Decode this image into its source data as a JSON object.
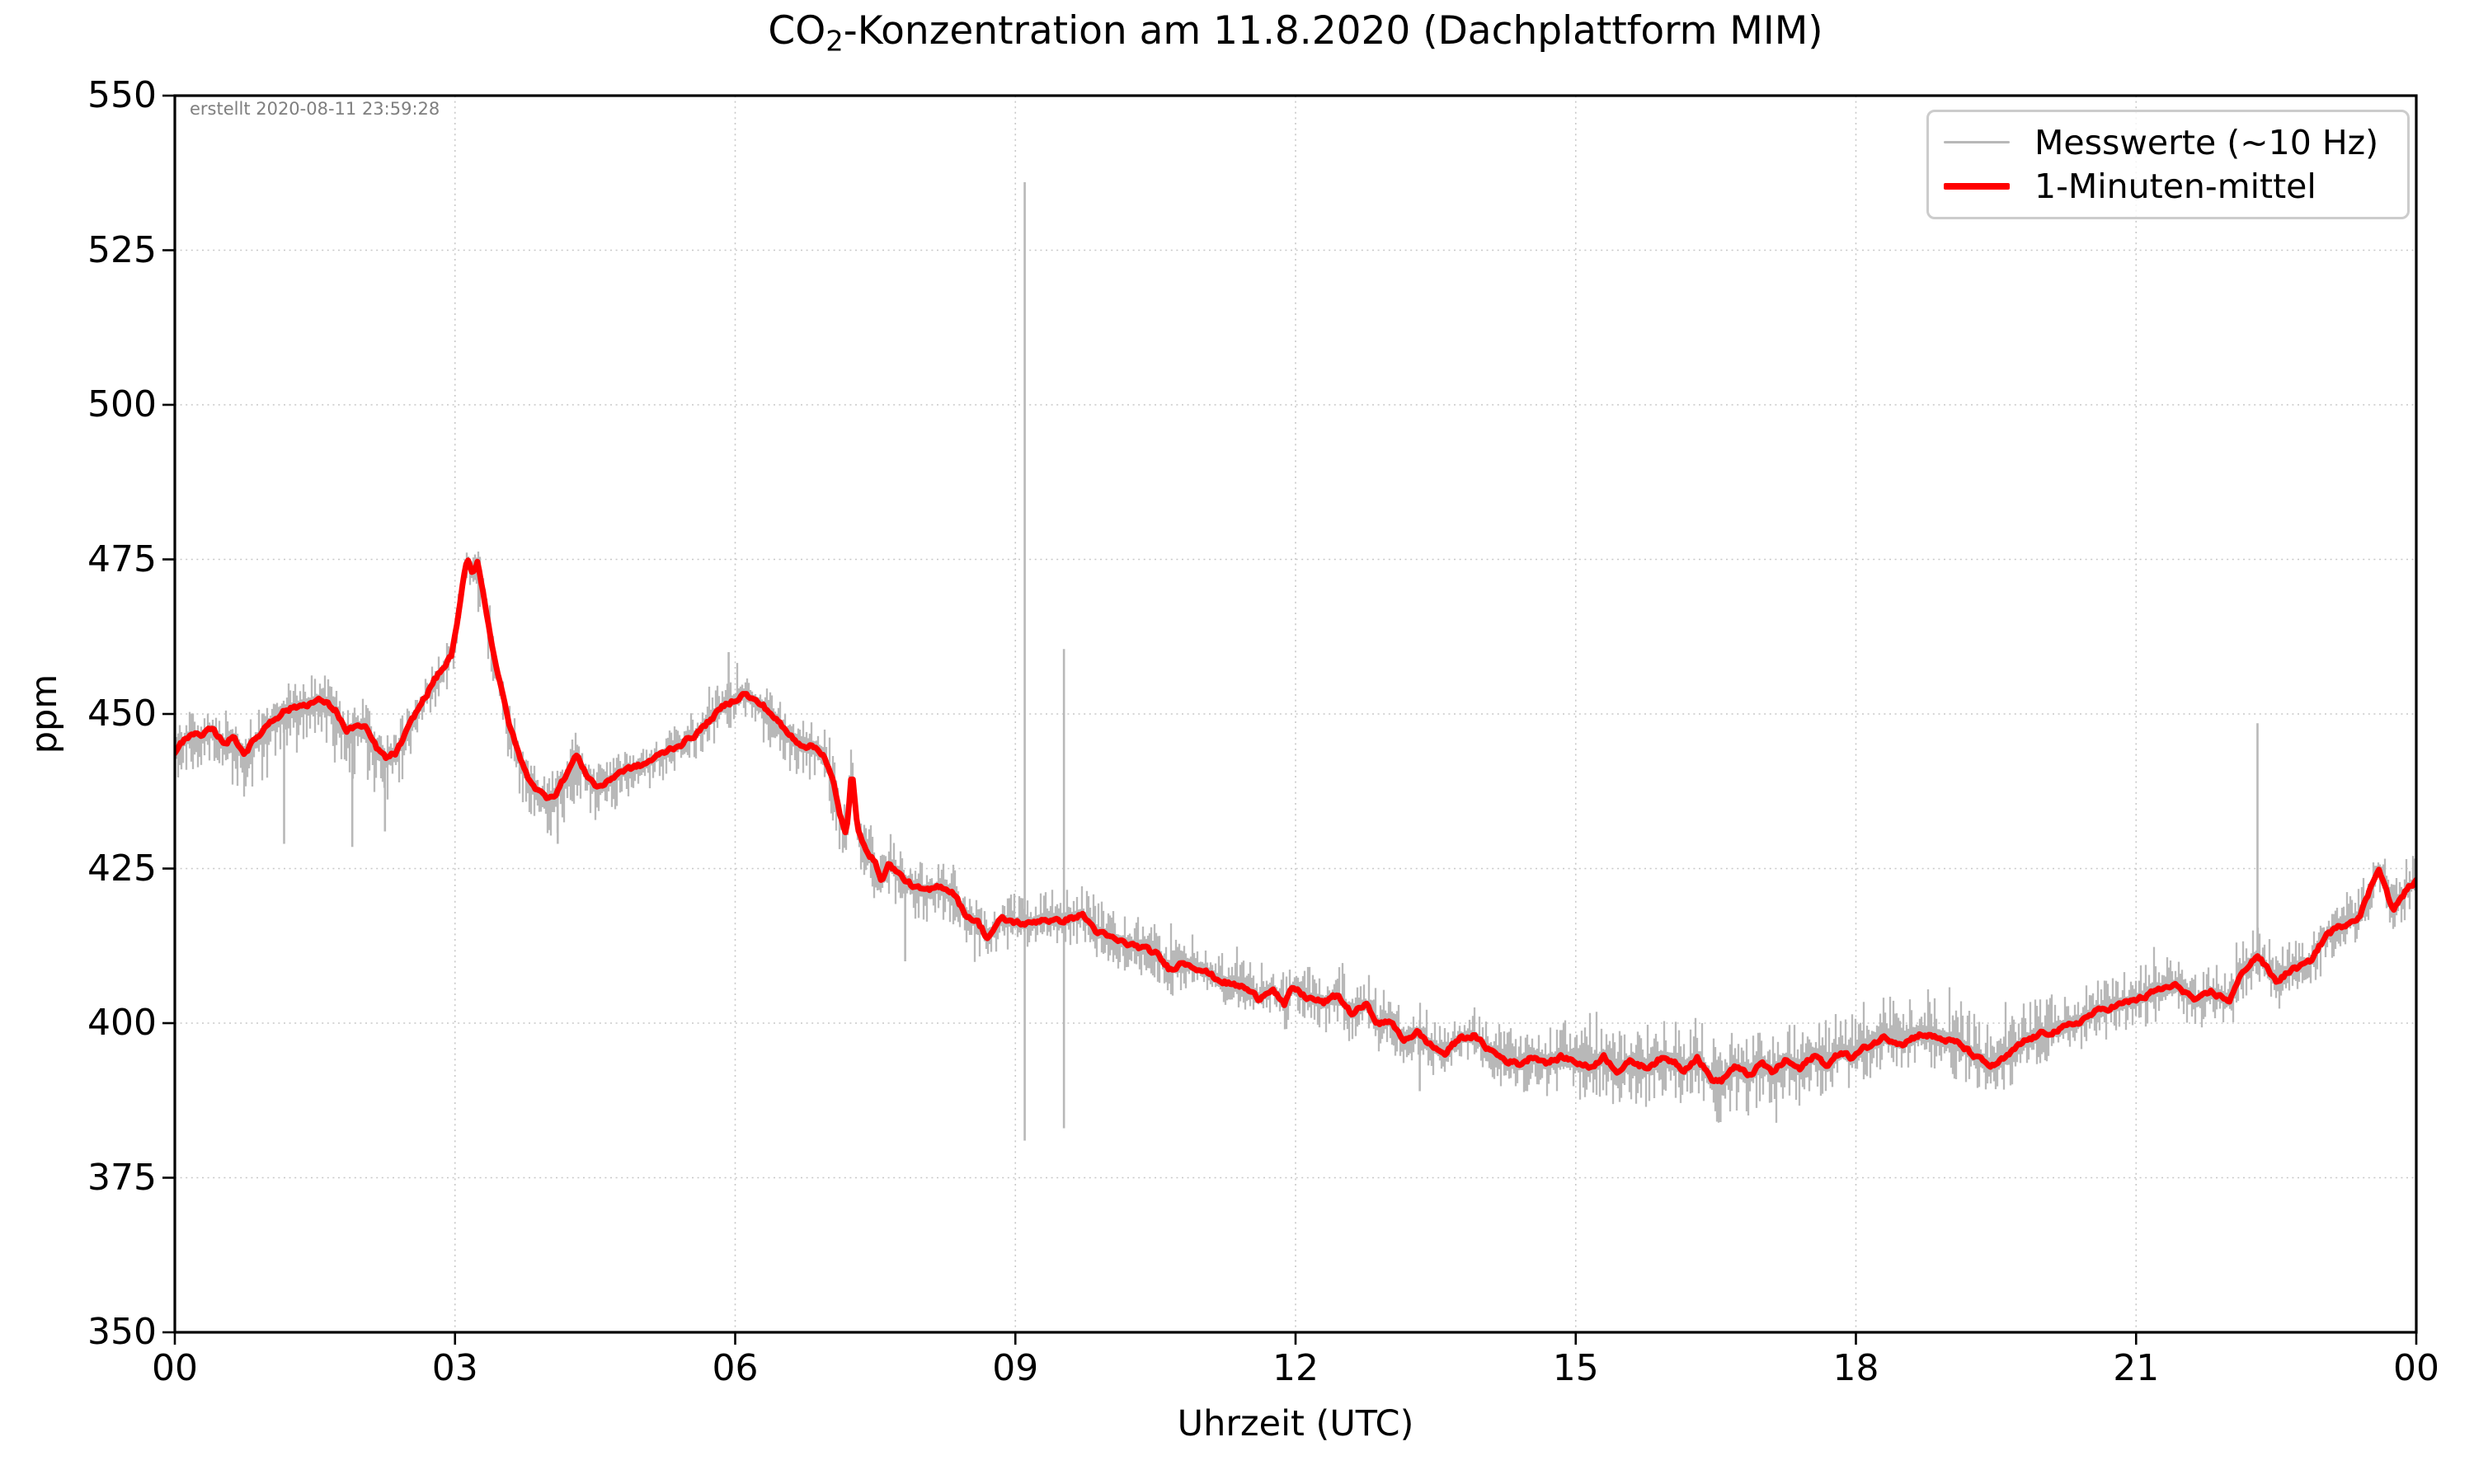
{
  "chart_data": {
    "type": "line",
    "title": {
      "prefix": "CO",
      "sub": "2",
      "rest": "-Konzentration am 11.8.2020 (Dachplattform MIM)"
    },
    "created_note": "erstellt 2020-08-11 23:59:28",
    "xlabel": "Uhrzeit (UTC)",
    "ylabel": "ppm",
    "xlim": [
      0,
      24
    ],
    "ylim": [
      350,
      550
    ],
    "grid": "dotted",
    "grid_color": "#c8c8c8",
    "axis_color": "#000000",
    "background": "#ffffff",
    "x_ticks": [
      {
        "t": 0,
        "label": "00"
      },
      {
        "t": 3,
        "label": "03"
      },
      {
        "t": 6,
        "label": "06"
      },
      {
        "t": 9,
        "label": "09"
      },
      {
        "t": 12,
        "label": "12"
      },
      {
        "t": 15,
        "label": "15"
      },
      {
        "t": 18,
        "label": "18"
      },
      {
        "t": 21,
        "label": "21"
      },
      {
        "t": 24,
        "label": "00"
      }
    ],
    "y_ticks": [
      350,
      375,
      400,
      425,
      450,
      475,
      500,
      525,
      550
    ],
    "legend": {
      "position": "top-right",
      "items": [
        {
          "label": "Messwerte (~10 Hz)",
          "color": "#b8b8b8",
          "line_width": 3
        },
        {
          "label": "1-Minuten-mittel",
          "color": "#ff0000",
          "line_width": 8
        }
      ]
    },
    "series": [
      {
        "name": "Messwerte (~10 Hz)",
        "color": "#b8b8b8",
        "render": "noise_band",
        "noise_keyframes": [
          [
            0.0,
            3.5,
            4.5
          ],
          [
            0.6,
            4,
            8
          ],
          [
            1.3,
            4.5,
            9
          ],
          [
            2.0,
            4.5,
            9
          ],
          [
            2.5,
            4,
            6
          ],
          [
            3.0,
            3.5,
            4.5
          ],
          [
            3.3,
            4.5,
            6
          ],
          [
            3.8,
            4,
            7
          ],
          [
            4.2,
            4,
            8
          ],
          [
            4.7,
            3.5,
            5.5
          ],
          [
            5.2,
            3.5,
            4.5
          ],
          [
            5.9,
            4.5,
            4.5
          ],
          [
            6.5,
            5,
            6.5
          ],
          [
            7.1,
            6,
            7
          ],
          [
            7.6,
            5,
            6.5
          ],
          [
            8.2,
            4.5,
            5.5
          ],
          [
            8.8,
            4.5,
            5
          ],
          [
            9.3,
            5,
            4.5
          ],
          [
            10.0,
            5.5,
            4.5
          ],
          [
            10.8,
            5,
            4.5
          ],
          [
            11.5,
            5.5,
            5
          ],
          [
            12.2,
            5,
            5
          ],
          [
            13.0,
            5.5,
            5
          ],
          [
            13.8,
            5,
            4.5
          ],
          [
            14.5,
            6,
            6
          ],
          [
            15.2,
            6.5,
            6.5
          ],
          [
            16.0,
            7,
            7
          ],
          [
            16.8,
            6.5,
            7
          ],
          [
            17.5,
            7,
            6
          ],
          [
            18.2,
            8.5,
            5.5
          ],
          [
            19.0,
            7.5,
            6
          ],
          [
            19.8,
            6.5,
            5.5
          ],
          [
            20.5,
            5.5,
            5
          ],
          [
            21.2,
            5.5,
            5
          ],
          [
            22.0,
            5,
            5.5
          ],
          [
            22.8,
            5,
            5
          ],
          [
            23.5,
            5,
            4.5
          ],
          [
            24.0,
            5,
            4.5
          ]
        ],
        "spikes": [
          [
            1.17,
            429,
            447.5
          ],
          [
            1.9,
            428.5,
            446
          ],
          [
            2.25,
            431,
            444
          ],
          [
            4.1,
            429,
            439.5
          ],
          [
            5.93,
            450,
            460
          ],
          [
            7.82,
            410,
            423
          ],
          [
            9.1,
            381,
            536
          ],
          [
            9.52,
            383,
            460.5
          ],
          [
            13.33,
            389,
            400.5
          ],
          [
            16.55,
            384,
            394
          ],
          [
            22.3,
            409.5,
            448.5
          ]
        ]
      },
      {
        "name": "1-Minuten-mittel",
        "color": "#ff0000",
        "render": "line",
        "points": [
          [
            0.0,
            443.5
          ],
          [
            0.07,
            445.2
          ],
          [
            0.18,
            447.1
          ],
          [
            0.28,
            446.2
          ],
          [
            0.39,
            447.5
          ],
          [
            0.53,
            445.4
          ],
          [
            0.64,
            446.2
          ],
          [
            0.74,
            443.7
          ],
          [
            0.88,
            446.2
          ],
          [
            1.02,
            448.8
          ],
          [
            1.17,
            450.5
          ],
          [
            1.31,
            451.2
          ],
          [
            1.45,
            451.8
          ],
          [
            1.58,
            452.2
          ],
          [
            1.73,
            450.5
          ],
          [
            1.84,
            447.1
          ],
          [
            1.94,
            448.2
          ],
          [
            2.05,
            447.5
          ],
          [
            2.16,
            444.5
          ],
          [
            2.26,
            442.8
          ],
          [
            2.37,
            443.7
          ],
          [
            2.47,
            446.7
          ],
          [
            2.58,
            450.1
          ],
          [
            2.69,
            453.0
          ],
          [
            2.79,
            455.8
          ],
          [
            2.88,
            457.5
          ],
          [
            2.96,
            459.5
          ],
          [
            3.02,
            464.0
          ],
          [
            3.08,
            470.5
          ],
          [
            3.13,
            475.3
          ],
          [
            3.19,
            472.8
          ],
          [
            3.24,
            474.8
          ],
          [
            3.32,
            468.0
          ],
          [
            3.4,
            461.0
          ],
          [
            3.48,
            455.0
          ],
          [
            3.57,
            449.0
          ],
          [
            3.67,
            444.0
          ],
          [
            3.77,
            440.0
          ],
          [
            3.88,
            437.8
          ],
          [
            3.97,
            436.5
          ],
          [
            4.08,
            437.2
          ],
          [
            4.2,
            440.5
          ],
          [
            4.3,
            443.3
          ],
          [
            4.42,
            440.0
          ],
          [
            4.52,
            438.2
          ],
          [
            4.62,
            438.8
          ],
          [
            4.75,
            440.6
          ],
          [
            4.9,
            441.3
          ],
          [
            5.02,
            441.8
          ],
          [
            5.15,
            443.0
          ],
          [
            5.3,
            444.3
          ],
          [
            5.45,
            445.4
          ],
          [
            5.6,
            447.0
          ],
          [
            5.75,
            449.3
          ],
          [
            5.88,
            451.3
          ],
          [
            6.0,
            452.4
          ],
          [
            6.1,
            453.3
          ],
          [
            6.22,
            452.0
          ],
          [
            6.3,
            451.3
          ],
          [
            6.42,
            449.5
          ],
          [
            6.55,
            447.0
          ],
          [
            6.7,
            445.2
          ],
          [
            6.85,
            444.6
          ],
          [
            6.95,
            443.5
          ],
          [
            7.05,
            439.0
          ],
          [
            7.12,
            433.5
          ],
          [
            7.19,
            430.5
          ],
          [
            7.25,
            441.0
          ],
          [
            7.31,
            431.0
          ],
          [
            7.4,
            428.5
          ],
          [
            7.5,
            425.8
          ],
          [
            7.57,
            423.2
          ],
          [
            7.65,
            425.8
          ],
          [
            7.77,
            423.8
          ],
          [
            7.93,
            421.8
          ],
          [
            8.07,
            421.3
          ],
          [
            8.2,
            422.3
          ],
          [
            8.35,
            421.0
          ],
          [
            8.45,
            417.8
          ],
          [
            8.6,
            416.3
          ],
          [
            8.7,
            413.8
          ],
          [
            8.85,
            416.8
          ],
          [
            9.0,
            416.3
          ],
          [
            9.15,
            416.0
          ],
          [
            9.3,
            416.9
          ],
          [
            9.45,
            416.4
          ],
          [
            9.6,
            417.0
          ],
          [
            9.72,
            417.5
          ],
          [
            9.88,
            414.7
          ],
          [
            10.03,
            413.7
          ],
          [
            10.2,
            412.8
          ],
          [
            10.35,
            412.2
          ],
          [
            10.5,
            411.3
          ],
          [
            10.65,
            408.7
          ],
          [
            10.8,
            409.9
          ],
          [
            11.0,
            408.7
          ],
          [
            11.15,
            407.2
          ],
          [
            11.3,
            406.3
          ],
          [
            11.45,
            405.8
          ],
          [
            11.6,
            404.0
          ],
          [
            11.75,
            405.8
          ],
          [
            11.88,
            402.8
          ],
          [
            11.97,
            405.8
          ],
          [
            12.1,
            404.3
          ],
          [
            12.3,
            403.3
          ],
          [
            12.45,
            404.5
          ],
          [
            12.6,
            401.5
          ],
          [
            12.75,
            403.0
          ],
          [
            12.9,
            399.7
          ],
          [
            13.0,
            400.5
          ],
          [
            13.15,
            397.3
          ],
          [
            13.3,
            398.5
          ],
          [
            13.45,
            396.4
          ],
          [
            13.6,
            395.0
          ],
          [
            13.75,
            397.5
          ],
          [
            13.9,
            398.0
          ],
          [
            14.05,
            396.0
          ],
          [
            14.25,
            394.0
          ],
          [
            14.4,
            393.4
          ],
          [
            14.55,
            394.7
          ],
          [
            14.7,
            393.6
          ],
          [
            14.85,
            394.5
          ],
          [
            15.0,
            393.8
          ],
          [
            15.15,
            392.8
          ],
          [
            15.3,
            394.6
          ],
          [
            15.45,
            392.3
          ],
          [
            15.6,
            393.8
          ],
          [
            15.75,
            392.8
          ],
          [
            15.9,
            394.2
          ],
          [
            16.05,
            393.9
          ],
          [
            16.15,
            392.5
          ],
          [
            16.3,
            394.5
          ],
          [
            16.45,
            391.0
          ],
          [
            16.55,
            390.5
          ],
          [
            16.7,
            393.0
          ],
          [
            16.85,
            391.5
          ],
          [
            17.0,
            393.5
          ],
          [
            17.1,
            392.0
          ],
          [
            17.25,
            394.0
          ],
          [
            17.4,
            392.5
          ],
          [
            17.55,
            394.8
          ],
          [
            17.7,
            393.2
          ],
          [
            17.85,
            395.5
          ],
          [
            17.95,
            394.3
          ],
          [
            18.1,
            396.0
          ],
          [
            18.3,
            397.7
          ],
          [
            18.5,
            396.8
          ],
          [
            18.7,
            398.3
          ],
          [
            18.9,
            397.5
          ],
          [
            19.1,
            396.7
          ],
          [
            19.3,
            394.3
          ],
          [
            19.45,
            393.0
          ],
          [
            19.6,
            394.3
          ],
          [
            19.8,
            397.0
          ],
          [
            20.0,
            398.3
          ],
          [
            20.2,
            399.0
          ],
          [
            20.4,
            400.3
          ],
          [
            20.55,
            401.7
          ],
          [
            20.75,
            402.7
          ],
          [
            20.9,
            403.3
          ],
          [
            21.1,
            404.3
          ],
          [
            21.25,
            405.5
          ],
          [
            21.45,
            406.0
          ],
          [
            21.65,
            403.5
          ],
          [
            21.8,
            405.0
          ],
          [
            22.0,
            403.7
          ],
          [
            22.15,
            408.5
          ],
          [
            22.3,
            411.0
          ],
          [
            22.5,
            406.7
          ],
          [
            22.65,
            408.5
          ],
          [
            22.85,
            409.7
          ],
          [
            23.05,
            414.5
          ],
          [
            23.2,
            415.7
          ],
          [
            23.4,
            417.5
          ],
          [
            23.6,
            425.3
          ],
          [
            23.75,
            418.1
          ],
          [
            23.9,
            421.7
          ],
          [
            24.0,
            423.0
          ]
        ]
      }
    ]
  }
}
